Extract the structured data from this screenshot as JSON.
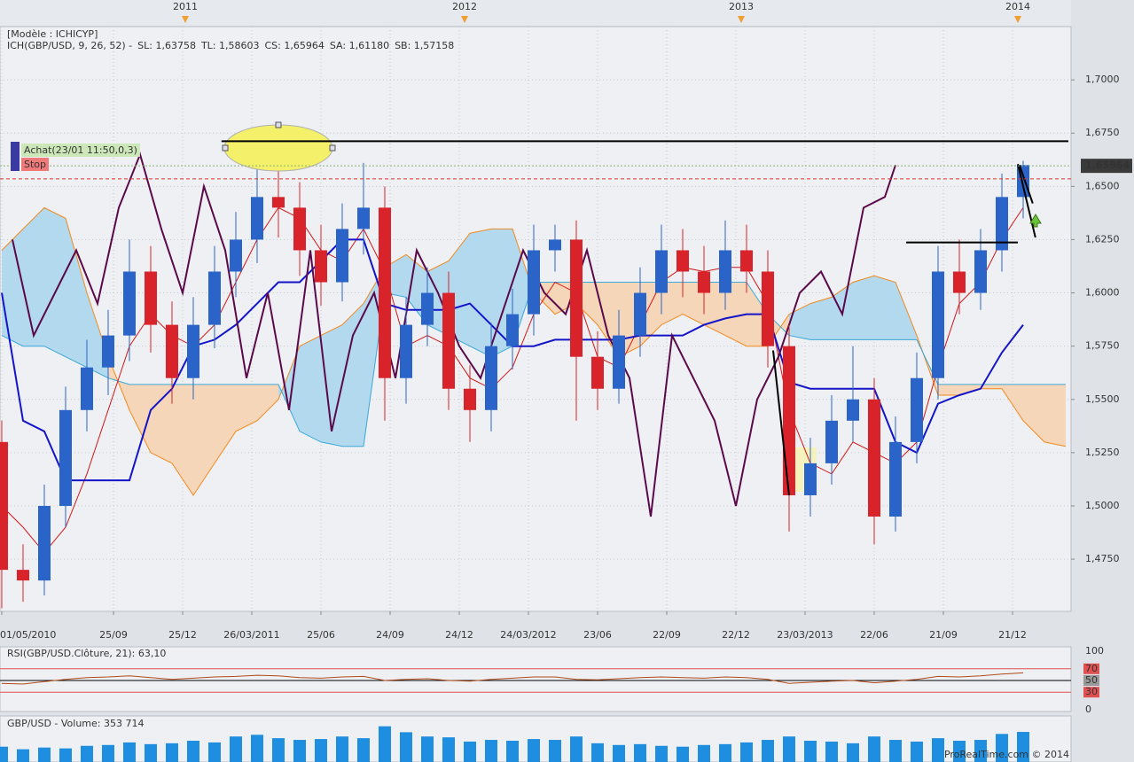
{
  "chart_data": {
    "type": "candlestick",
    "header": "[Modèle : ICHICYP]",
    "legend": [
      {
        "text": "ICH(GBP/USD, 9, 26, 52) -",
        "color": "#c8101a"
      },
      {
        "text": "SL: 1,63758",
        "color": "#c8101a"
      },
      {
        "text": "TL: 1,58603",
        "color": "#1414b4"
      },
      {
        "text": "CS: 1,65964",
        "color": "#5a0a4a"
      },
      {
        "text": "SA: 1,61180",
        "color": "#f08a20"
      },
      {
        "text": "SB: 1,57158",
        "color": "#20a0d8"
      }
    ],
    "xlim": [
      -0.33,
      201
    ],
    "ylim": [
      1.4505,
      1.725
    ],
    "grid": true,
    "yticks": [
      {
        "value": 1.475,
        "label": "1,4750"
      },
      {
        "value": 1.5,
        "label": "1,5000"
      },
      {
        "value": 1.525,
        "label": "1,5250"
      },
      {
        "value": 1.55,
        "label": "1,5500"
      },
      {
        "value": 1.575,
        "label": "1,5750"
      },
      {
        "value": 1.6,
        "label": "1,6000"
      },
      {
        "value": 1.625,
        "label": "1,6250"
      },
      {
        "value": 1.65,
        "label": "1,6500"
      },
      {
        "value": 1.675,
        "label": "1,6750"
      },
      {
        "value": 1.7,
        "label": "1,7000"
      }
    ],
    "xticks": [
      {
        "value": 0,
        "label": "01/05/2010"
      },
      {
        "value": 21,
        "label": "25/09"
      },
      {
        "value": 34,
        "label": "25/12"
      },
      {
        "value": 47,
        "label": "26/03/2011"
      },
      {
        "value": 60,
        "label": "25/06"
      },
      {
        "value": 73,
        "label": "24/09"
      },
      {
        "value": 86,
        "label": "24/12"
      },
      {
        "value": 99,
        "label": "24/03/2012"
      },
      {
        "value": 112,
        "label": "23/06"
      },
      {
        "value": 125,
        "label": "22/09"
      },
      {
        "value": 138,
        "label": "22/12"
      },
      {
        "value": 151,
        "label": "23/03/2013"
      },
      {
        "value": 164,
        "label": "22/06"
      },
      {
        "value": 177,
        "label": "21/09"
      },
      {
        "value": 190,
        "label": "21/12"
      }
    ],
    "top_ticks": [
      {
        "value": 34.5,
        "label": "2011"
      },
      {
        "value": 87,
        "label": "2012"
      },
      {
        "value": 139,
        "label": "2013"
      },
      {
        "value": 191,
        "label": "2014"
      }
    ],
    "x": [
      0,
      4,
      8,
      12,
      16,
      20,
      24,
      28,
      32,
      36,
      40,
      44,
      48,
      52,
      56,
      60,
      64,
      68,
      72,
      76,
      80,
      84,
      88,
      92,
      96,
      100,
      104,
      108,
      112,
      116,
      120,
      124,
      128,
      132,
      136,
      140,
      144,
      148,
      152,
      156,
      160,
      164,
      168,
      172,
      176,
      180,
      184,
      188,
      192
    ],
    "candles": {
      "up_color": "#2a64c8",
      "down_color": "#d8232a",
      "open": [
        1.53,
        1.47,
        1.465,
        1.5,
        1.545,
        1.565,
        1.58,
        1.61,
        1.585,
        1.56,
        1.585,
        1.61,
        1.625,
        1.645,
        1.64,
        1.62,
        1.605,
        1.63,
        1.64,
        1.56,
        1.585,
        1.6,
        1.555,
        1.545,
        1.575,
        1.59,
        1.62,
        1.625,
        1.57,
        1.555,
        1.58,
        1.6,
        1.62,
        1.61,
        1.6,
        1.62,
        1.61,
        1.575,
        1.505,
        1.52,
        1.54,
        1.55,
        1.495,
        1.53,
        1.56,
        1.61,
        1.6,
        1.62,
        1.645
      ],
      "high": [
        1.54,
        1.482,
        1.51,
        1.556,
        1.578,
        1.592,
        1.625,
        1.622,
        1.596,
        1.598,
        1.622,
        1.638,
        1.672,
        1.66,
        1.652,
        1.632,
        1.642,
        1.661,
        1.65,
        1.598,
        1.612,
        1.61,
        1.566,
        1.586,
        1.602,
        1.632,
        1.632,
        1.634,
        1.582,
        1.592,
        1.612,
        1.632,
        1.63,
        1.622,
        1.634,
        1.632,
        1.62,
        1.585,
        1.532,
        1.552,
        1.575,
        1.56,
        1.542,
        1.572,
        1.622,
        1.625,
        1.63,
        1.656,
        1.662
      ],
      "low": [
        1.452,
        1.455,
        1.458,
        1.49,
        1.535,
        1.552,
        1.568,
        1.572,
        1.548,
        1.55,
        1.574,
        1.598,
        1.614,
        1.626,
        1.608,
        1.594,
        1.596,
        1.618,
        1.54,
        1.548,
        1.575,
        1.545,
        1.53,
        1.535,
        1.564,
        1.58,
        1.61,
        1.54,
        1.545,
        1.548,
        1.57,
        1.59,
        1.598,
        1.59,
        1.592,
        1.6,
        1.565,
        1.488,
        1.495,
        1.51,
        1.53,
        1.482,
        1.488,
        1.52,
        1.55,
        1.59,
        1.592,
        1.61,
        1.635
      ],
      "close": [
        1.47,
        1.465,
        1.5,
        1.545,
        1.565,
        1.58,
        1.61,
        1.585,
        1.56,
        1.585,
        1.61,
        1.625,
        1.645,
        1.64,
        1.62,
        1.605,
        1.63,
        1.64,
        1.56,
        1.585,
        1.6,
        1.555,
        1.545,
        1.575,
        1.59,
        1.62,
        1.625,
        1.57,
        1.555,
        1.58,
        1.6,
        1.62,
        1.61,
        1.6,
        1.62,
        1.61,
        1.575,
        1.505,
        1.52,
        1.54,
        1.55,
        1.495,
        1.53,
        1.56,
        1.61,
        1.6,
        1.62,
        1.645,
        1.66
      ]
    },
    "series": [
      {
        "color": "#d01818",
        "width": 1,
        "values": [
          1.5,
          1.49,
          1.478,
          1.49,
          1.515,
          1.545,
          1.575,
          1.59,
          1.58,
          1.575,
          1.585,
          1.605,
          1.625,
          1.64,
          1.635,
          1.62,
          1.615,
          1.63,
          1.61,
          1.575,
          1.58,
          1.575,
          1.56,
          1.555,
          1.565,
          1.59,
          1.605,
          1.6,
          1.57,
          1.565,
          1.585,
          1.605,
          1.612,
          1.61,
          1.612,
          1.612,
          1.595,
          1.545,
          1.52,
          1.515,
          1.53,
          1.525,
          1.52,
          1.53,
          1.565,
          1.595,
          1.605,
          1.625,
          1.64
        ]
      },
      {
        "color": "#1414c8",
        "width": 2,
        "values": [
          1.6,
          1.54,
          1.535,
          1.512,
          1.512,
          1.512,
          1.512,
          1.545,
          1.555,
          1.575,
          1.578,
          1.585,
          1.595,
          1.605,
          1.605,
          1.615,
          1.625,
          1.625,
          1.595,
          1.592,
          1.592,
          1.592,
          1.595,
          1.585,
          1.575,
          1.575,
          1.578,
          1.578,
          1.578,
          1.578,
          1.58,
          1.58,
          1.58,
          1.585,
          1.588,
          1.59,
          1.59,
          1.558,
          1.555,
          1.555,
          1.555,
          1.555,
          1.53,
          1.525,
          1.548,
          1.552,
          1.555,
          1.572,
          1.585
        ]
      }
    ],
    "chikou": {
      "color": "#5a0a4a",
      "width": 2,
      "x": [
        2,
        6,
        10,
        14,
        18,
        22,
        26,
        30,
        34,
        38,
        42,
        46,
        50,
        54,
        58,
        62,
        66,
        70,
        74,
        78,
        82,
        86,
        90,
        94,
        98,
        102,
        106,
        110,
        114,
        118,
        122,
        126,
        130,
        134,
        138,
        142,
        146,
        150,
        154,
        158,
        162,
        166,
        168
      ],
      "values": [
        1.625,
        1.58,
        1.6,
        1.62,
        1.595,
        1.64,
        1.665,
        1.63,
        1.6,
        1.65,
        1.62,
        1.56,
        1.6,
        1.545,
        1.62,
        1.535,
        1.58,
        1.6,
        1.56,
        1.62,
        1.6,
        1.575,
        1.56,
        1.59,
        1.62,
        1.6,
        1.59,
        1.62,
        1.58,
        1.56,
        1.495,
        1.58,
        1.56,
        1.54,
        1.5,
        1.55,
        1.57,
        1.6,
        1.61,
        1.59,
        1.64,
        1.645,
        1.66
      ]
    },
    "cloud": {
      "fill_up": "#b3d9ee",
      "fill_down": "#f6d6b8",
      "x": [
        0,
        4,
        8,
        12,
        16,
        20,
        24,
        28,
        32,
        36,
        40,
        44,
        48,
        52,
        56,
        60,
        64,
        68,
        72,
        76,
        80,
        84,
        88,
        92,
        96,
        100,
        104,
        108,
        112,
        116,
        120,
        124,
        128,
        132,
        136,
        140,
        144,
        148,
        152,
        156,
        160,
        164,
        168,
        172,
        176,
        180,
        184,
        188,
        192,
        196,
        200
      ],
      "a": {
        "color": "#f08a20",
        "values": [
          1.62,
          1.63,
          1.64,
          1.635,
          1.6,
          1.57,
          1.545,
          1.525,
          1.52,
          1.505,
          1.52,
          1.535,
          1.54,
          1.55,
          1.575,
          1.58,
          1.585,
          1.595,
          1.612,
          1.618,
          1.61,
          1.615,
          1.628,
          1.63,
          1.63,
          1.6,
          1.59,
          1.595,
          1.585,
          1.57,
          1.575,
          1.585,
          1.59,
          1.585,
          1.58,
          1.575,
          1.575,
          1.59,
          1.595,
          1.598,
          1.605,
          1.608,
          1.605,
          1.58,
          1.552,
          1.552,
          1.555,
          1.555,
          1.54,
          1.53,
          1.528
        ]
      },
      "b": {
        "color": "#3aa8d8",
        "values": [
          1.58,
          1.575,
          1.575,
          1.57,
          1.565,
          1.56,
          1.557,
          1.557,
          1.557,
          1.557,
          1.557,
          1.557,
          1.557,
          1.557,
          1.535,
          1.53,
          1.528,
          1.528,
          1.6,
          1.598,
          1.585,
          1.58,
          1.575,
          1.57,
          1.575,
          1.605,
          1.605,
          1.605,
          1.605,
          1.605,
          1.605,
          1.605,
          1.605,
          1.605,
          1.605,
          1.605,
          1.59,
          1.58,
          1.578,
          1.578,
          1.578,
          1.578,
          1.578,
          1.578,
          1.557,
          1.557,
          1.557,
          1.557,
          1.557,
          1.557,
          1.557
        ]
      }
    },
    "drawings": [
      {
        "color": "#000000",
        "x": [
          41.3,
          200.5
        ],
        "y": [
          1.6712,
          1.6712
        ]
      },
      {
        "color": "#000000",
        "x": [
          170,
          191
        ],
        "y": [
          1.6237,
          1.6237
        ]
      },
      {
        "color": "#000000",
        "x": [
          145,
          148
        ],
        "y": [
          1.573,
          1.505
        ]
      },
      {
        "color": "#000000",
        "x": [
          191,
          194.3
        ],
        "y": [
          1.6605,
          1.626
        ]
      },
      {
        "color": "#000000",
        "x": [
          191.3,
          193.8
        ],
        "y": [
          1.66,
          1.642
        ]
      }
    ],
    "hlines": [
      {
        "value": 1.6535,
        "color": "#e03030"
      }
    ],
    "last_price": {
      "value": 1.65964,
      "label": "1,65964",
      "color": "#3a3a3a"
    },
    "orders": [
      {
        "label": "Achat(23/01 11:50,0,3)",
        "color": "#cde8b8"
      },
      {
        "label": "Stop",
        "color": "#f07a7a"
      }
    ],
    "rsi": {
      "title": "RSI(GBP/USD.Clôture, 21): 63,10",
      "color": "#b04a18",
      "ylim": [
        0,
        100
      ],
      "yticks": [
        100,
        70,
        50,
        30,
        0
      ],
      "levels": [
        {
          "value": 70,
          "color": "#e05050"
        },
        {
          "value": 50,
          "color": "#000000"
        },
        {
          "value": 30,
          "color": "#e05050"
        }
      ],
      "values": [
        45,
        44,
        48,
        52,
        55,
        56,
        58,
        55,
        52,
        54,
        56,
        57,
        59,
        58,
        55,
        54,
        56,
        57,
        50,
        52,
        53,
        50,
        49,
        52,
        54,
        56,
        56,
        52,
        51,
        53,
        55,
        56,
        55,
        54,
        56,
        55,
        52,
        45,
        47,
        49,
        50,
        46,
        49,
        52,
        57,
        56,
        58,
        61,
        63.1
      ]
    },
    "volume": {
      "title": "GBP/USD - Volume: 353 714",
      "color": "#1e8ee0",
      "ylim": [
        0,
        500000
      ],
      "values": [
        180000,
        150000,
        170000,
        160000,
        190000,
        200000,
        230000,
        210000,
        220000,
        250000,
        230000,
        300000,
        320000,
        280000,
        260000,
        270000,
        300000,
        280000,
        420000,
        350000,
        300000,
        290000,
        240000,
        260000,
        250000,
        270000,
        260000,
        300000,
        220000,
        200000,
        210000,
        190000,
        180000,
        200000,
        210000,
        230000,
        260000,
        300000,
        250000,
        240000,
        220000,
        300000,
        260000,
        240000,
        280000,
        250000,
        260000,
        330000,
        353714
      ]
    },
    "footer": "ProRealTime.com © 2014"
  }
}
